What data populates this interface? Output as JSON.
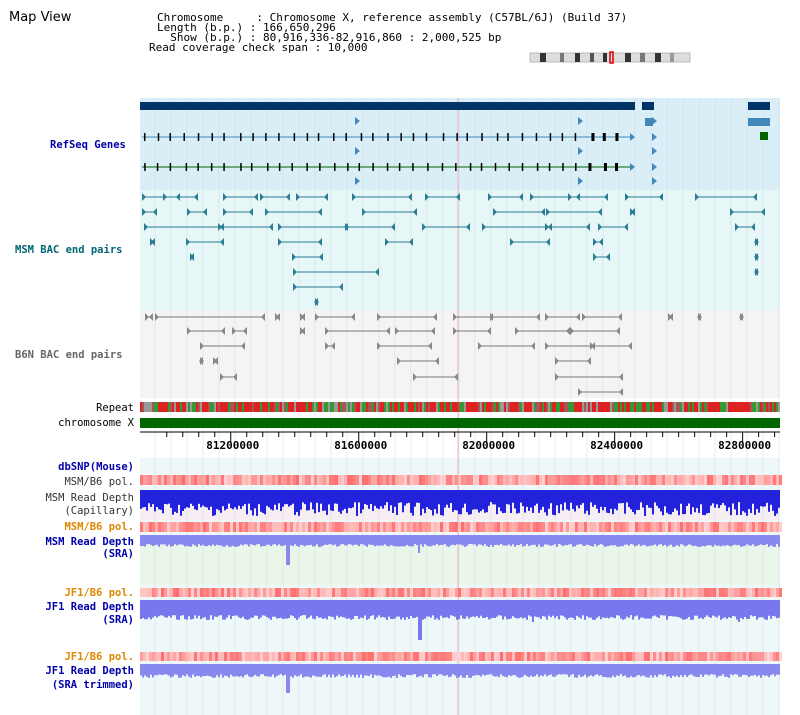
{
  "page": {
    "title": "Map View"
  },
  "info": {
    "chromosome_label": "Chromosome     : Chromosome X, reference assembly (C57BL/6J) (Build 37)",
    "length_label": "Length (b.p.) : 166,650,296",
    "show_label": "  Show (b.p.) : 80,916,336-82,916,860 : 2,000,525 bp",
    "coverage_label": "Read coverage check span : 10,000"
  },
  "tracks": {
    "refseq": "RefSeq Genes",
    "msm_bac": "MSM BAC end pairs",
    "b6n_bac": "B6N BAC end pairs",
    "repeat": "Repeat",
    "chromosome": "chromosome X",
    "dbsnp": "dbSNP(Mouse)",
    "msm_b6_pol_1": "MSM/B6 pol.",
    "msm_read_depth_cap_1": "MSM Read Depth",
    "msm_read_depth_cap_2": "(Capillary)",
    "msm_b6_pol_2": "MSM/B6 pol.",
    "msm_read_depth_sra_1": "MSM Read Depth",
    "msm_read_depth_sra_2": "(SRA)",
    "jf1_b6_pol_1": "JF1/B6 pol.",
    "jf1_read_depth_1": "JF1 Read Depth",
    "jf1_read_depth_2": "(SRA)",
    "jf1_b6_pol_2": "JF1/B6 pol.",
    "jf1_read_depth_trim_1": "JF1 Read Depth",
    "jf1_read_depth_trim_2": "(SRA trimmed)"
  },
  "axis": {
    "ticks": [
      "81200000",
      "81600000",
      "82000000",
      "82400000",
      "82800000"
    ],
    "tick_values": [
      81200000,
      81600000,
      82000000,
      82400000,
      82800000
    ],
    "range": [
      80916336,
      82916860
    ]
  },
  "colors": {
    "gene_dark": "#003366",
    "gene_mid": "#4488bb",
    "gene_green": "#006600",
    "msm_pair": "#2a7d95",
    "b6n_pair": "#777777",
    "chromosome_bar": "#006600",
    "label_blue": "#0000aa",
    "label_teal": "#006677",
    "label_orange": "#dd8800",
    "depth_blue": "#2222dd",
    "depth_light": "#7777ee"
  }
}
